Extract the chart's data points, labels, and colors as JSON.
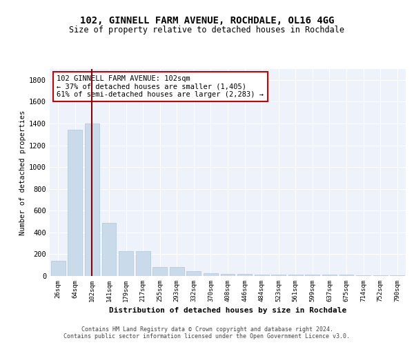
{
  "title1": "102, GINNELL FARM AVENUE, ROCHDALE, OL16 4GG",
  "title2": "Size of property relative to detached houses in Rochdale",
  "xlabel": "Distribution of detached houses by size in Rochdale",
  "ylabel": "Number of detached properties",
  "categories": [
    "26sqm",
    "64sqm",
    "102sqm",
    "141sqm",
    "179sqm",
    "217sqm",
    "255sqm",
    "293sqm",
    "332sqm",
    "370sqm",
    "408sqm",
    "446sqm",
    "484sqm",
    "523sqm",
    "561sqm",
    "599sqm",
    "637sqm",
    "675sqm",
    "714sqm",
    "752sqm",
    "790sqm"
  ],
  "values": [
    140,
    1340,
    1400,
    490,
    225,
    225,
    85,
    85,
    47,
    27,
    20,
    20,
    15,
    15,
    12,
    12,
    10,
    10,
    8,
    8,
    8
  ],
  "highlight_index": 2,
  "bar_color": "#c9daea",
  "bar_edge_color": "#aec6d8",
  "highlight_line_color": "#8b0000",
  "background_color": "#edf2fb",
  "annotation_text": "102 GINNELL FARM AVENUE: 102sqm\n← 37% of detached houses are smaller (1,405)\n61% of semi-detached houses are larger (2,283) →",
  "annotation_box_color": "white",
  "annotation_box_edge_color": "#cc0000",
  "footer": "Contains HM Land Registry data © Crown copyright and database right 2024.\nContains public sector information licensed under the Open Government Licence v3.0.",
  "ylim": [
    0,
    1900
  ],
  "yticks": [
    0,
    200,
    400,
    600,
    800,
    1000,
    1200,
    1400,
    1600,
    1800
  ]
}
